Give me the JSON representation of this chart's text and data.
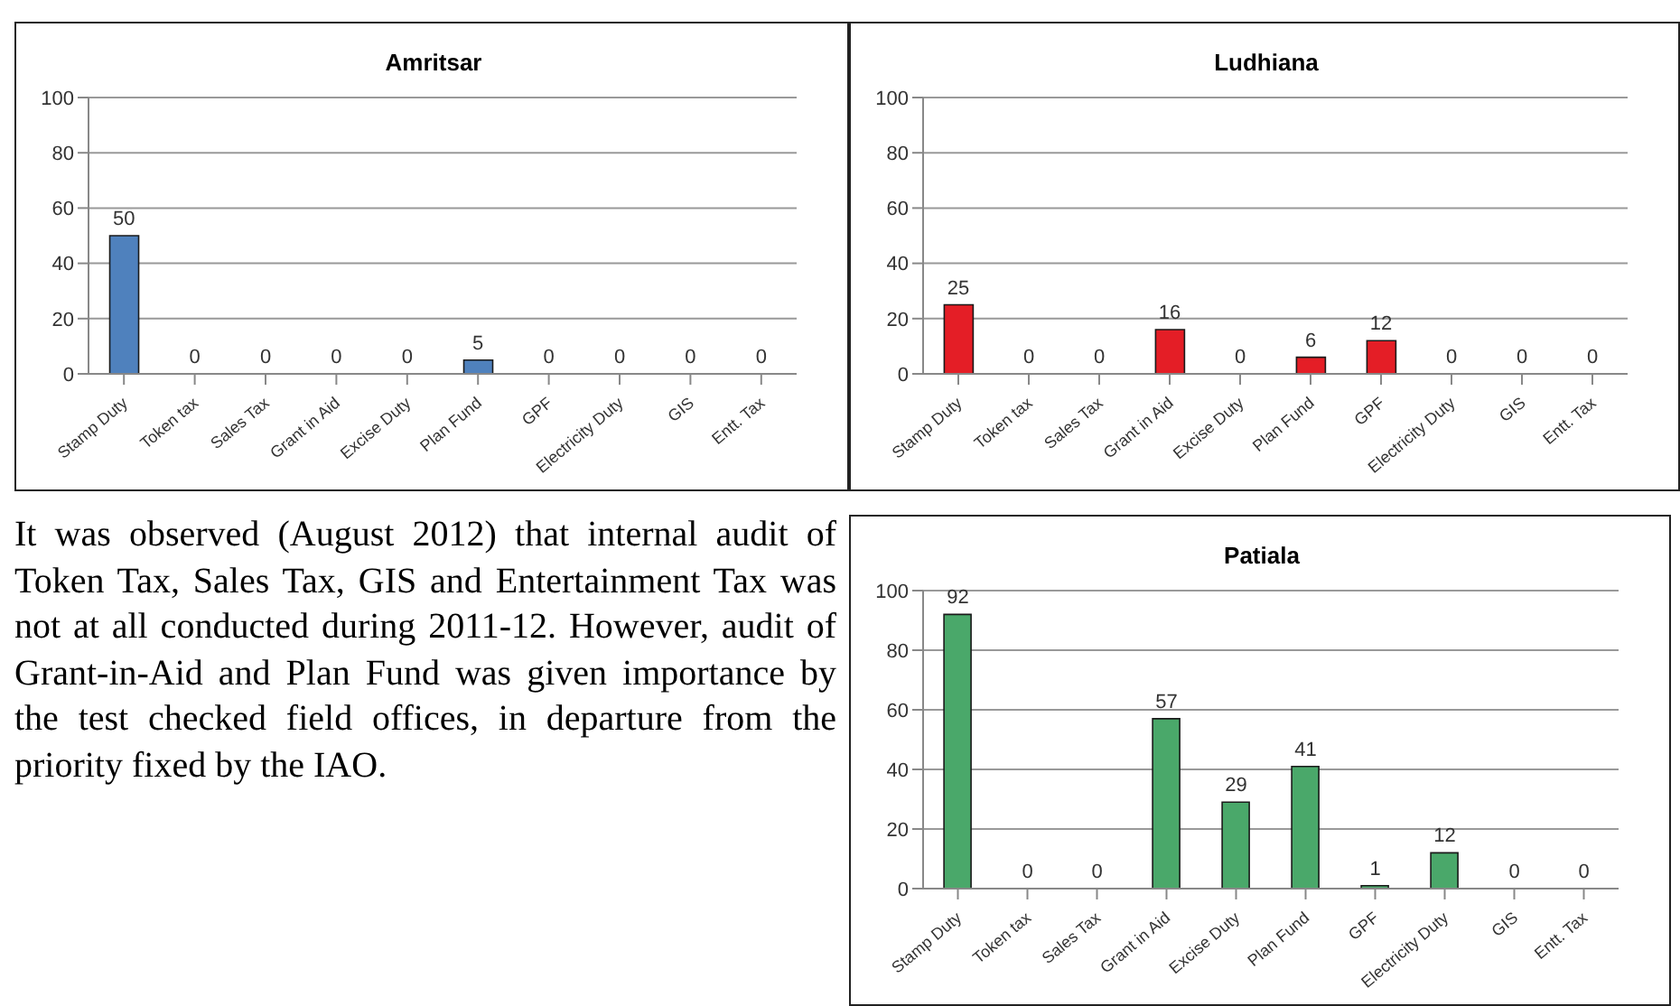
{
  "chart_data": [
    {
      "type": "bar",
      "title": "Amritsar",
      "categories": [
        "Stamp Duty",
        "Token tax",
        "Sales Tax",
        "Grant in Aid",
        "Excise Duty",
        "Plan Fund",
        "GPF",
        "Electricity Duty",
        "GIS",
        "Entt. Tax"
      ],
      "values": [
        50,
        0,
        0,
        0,
        0,
        5,
        0,
        0,
        0,
        0
      ],
      "color": "#4f81bd",
      "ylim": [
        0,
        100
      ],
      "yticks": [
        0,
        20,
        40,
        60,
        80,
        100
      ],
      "grid": "y",
      "data_labels": true
    },
    {
      "type": "bar",
      "title": "Ludhiana",
      "categories": [
        "Stamp Duty",
        "Token tax",
        "Sales Tax",
        "Grant in Aid",
        "Excise Duty",
        "Plan Fund",
        "GPF",
        "Electricity Duty",
        "GIS",
        "Entt. Tax"
      ],
      "values": [
        25,
        0,
        0,
        16,
        0,
        6,
        12,
        0,
        0,
        0
      ],
      "color": "#e41e26",
      "ylim": [
        0,
        100
      ],
      "yticks": [
        0,
        20,
        40,
        60,
        80,
        100
      ],
      "grid": "y",
      "data_labels": true
    },
    {
      "type": "other",
      "annotations": [
        "It was observed (August 2012) that internal audit of Token Tax, Sales Tax, GIS and Entertainment Tax was not at all conducted during 2011-12. However, audit of Grant-in-Aid and Plan Fund was given importance by the test checked field offices, in departure from the priority fixed by the IAO."
      ]
    },
    {
      "type": "bar",
      "title": "Patiala",
      "categories": [
        "Stamp Duty",
        "Token tax",
        "Sales Tax",
        "Grant in Aid",
        "Excise Duty",
        "Plan Fund",
        "GPF",
        "Electricity Duty",
        "GIS",
        "Entt. Tax"
      ],
      "values": [
        92,
        0,
        0,
        57,
        29,
        41,
        1,
        12,
        0,
        0
      ],
      "color": "#4aa86a",
      "ylim": [
        0,
        100
      ],
      "yticks": [
        0,
        20,
        40,
        60,
        80,
        100
      ],
      "grid": "y",
      "data_labels": true
    }
  ]
}
